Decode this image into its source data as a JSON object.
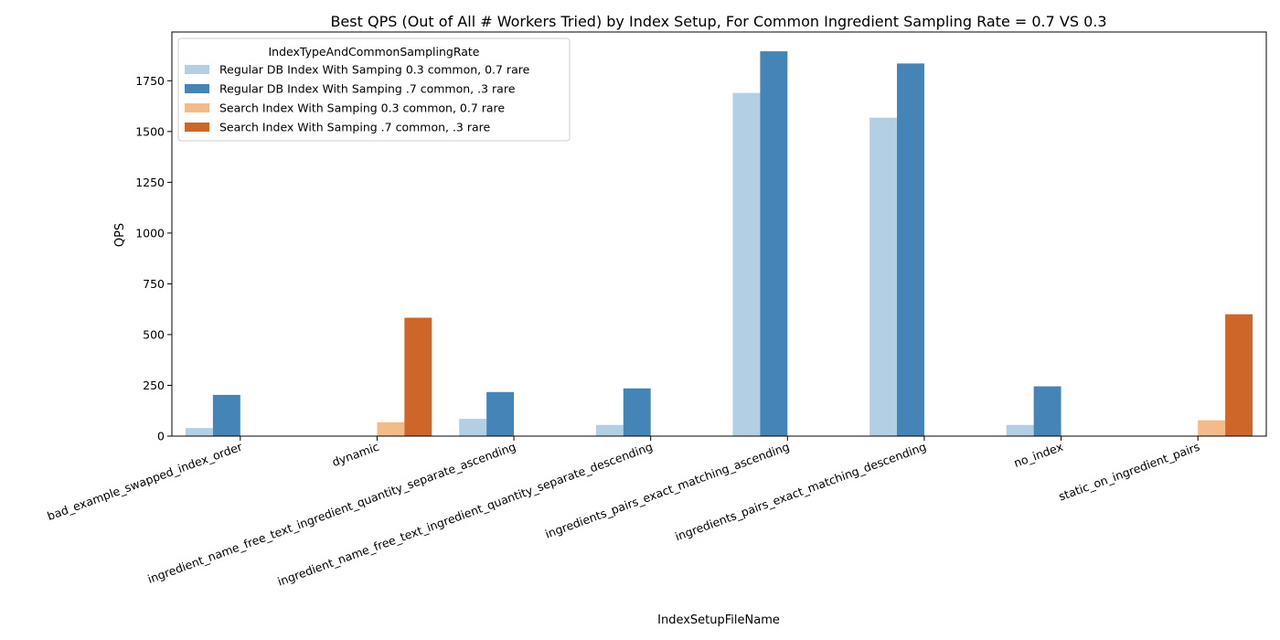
{
  "chart_data": {
    "type": "bar",
    "title": "Best QPS (Out of All # Workers Tried) by Index Setup, For Common Ingredient Sampling Rate = 0.7 VS 0.3",
    "xlabel": "IndexSetupFileName",
    "ylabel": "QPS",
    "ylim": [
      0,
      1990
    ],
    "yticks": [
      0,
      250,
      500,
      750,
      1000,
      1250,
      1500,
      1750
    ],
    "ytick_labels": [
      "0",
      "250",
      "500",
      "750",
      "1000",
      "1250",
      "1500",
      "1750"
    ],
    "categories": [
      "bad_example_swapped_index_order",
      "dynamic",
      "ingredient_name_free_text_ingredient_quantity_separate_ascending",
      "ingredient_name_free_text_ingredient_quantity_separate_descending",
      "ingredients_pairs_exact_matching_ascending",
      "ingredients_pairs_exact_matching_descending",
      "no_index",
      "static_on_ingredient_pairs"
    ],
    "legend_title": "IndexTypeAndCommonSamplingRate",
    "legend_position": "upper-left",
    "grid": false,
    "series": [
      {
        "name": "Regular DB Index With Samping 0.3 common, 0.7 rare",
        "color": "#b3cfe3",
        "values": [
          40,
          null,
          85,
          55,
          1690,
          1568,
          55,
          null
        ]
      },
      {
        "name": "Regular DB Index With Samping .7 common, .3 rare",
        "color": "#4584b6",
        "values": [
          203,
          null,
          217,
          235,
          1895,
          1835,
          245,
          null
        ]
      },
      {
        "name": "Search Index With Samping 0.3 common, 0.7 rare",
        "color": "#f2bb87",
        "values": [
          null,
          68,
          null,
          null,
          null,
          null,
          null,
          78
        ]
      },
      {
        "name": "Search Index With Samping .7 common, .3 rare",
        "color": "#cd6628",
        "values": [
          null,
          583,
          null,
          null,
          null,
          null,
          null,
          600
        ]
      }
    ]
  }
}
